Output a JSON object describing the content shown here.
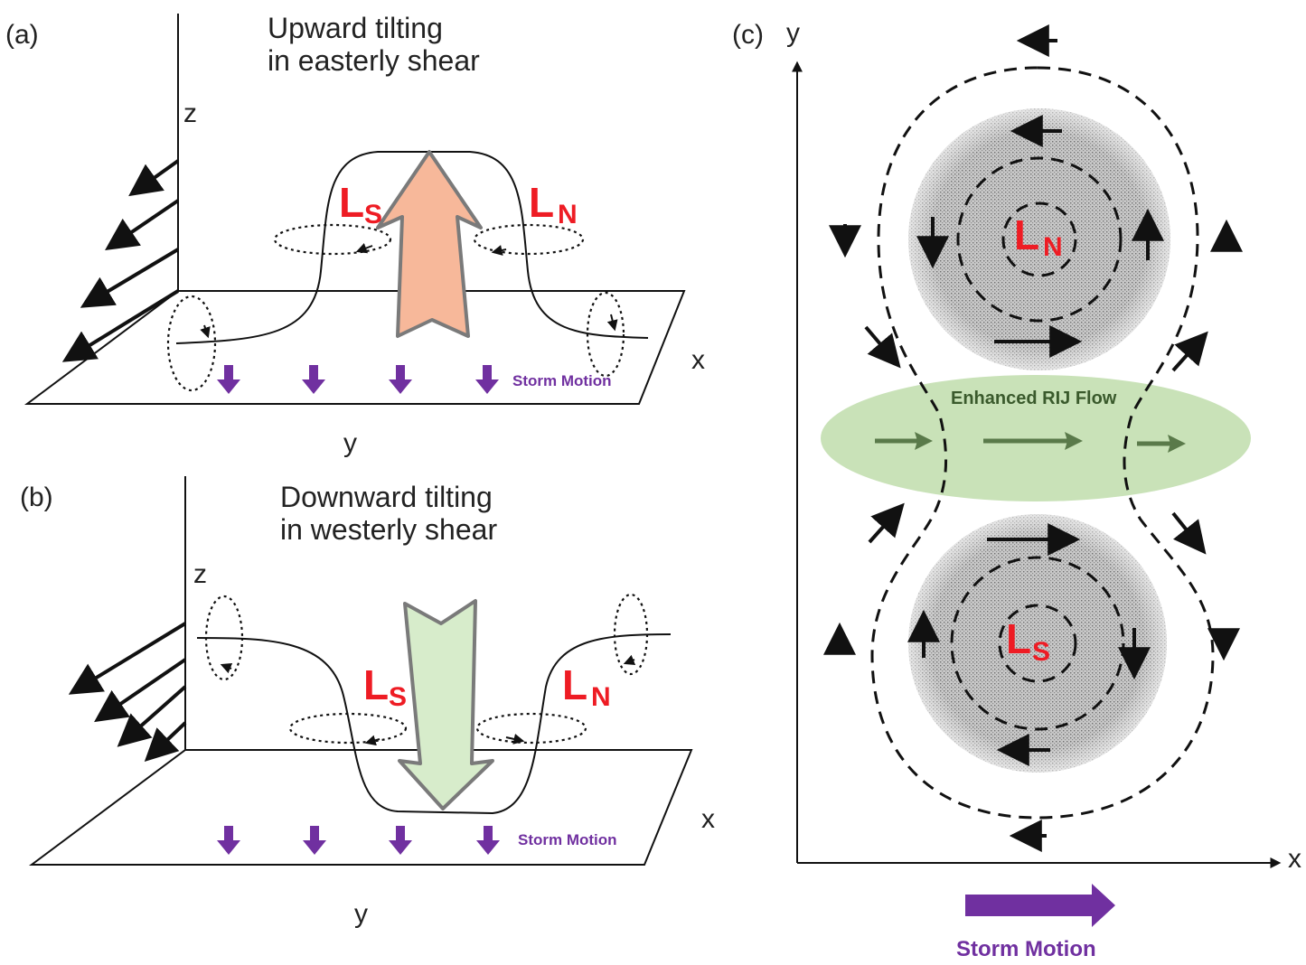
{
  "panel_a": {
    "label": "(a)",
    "title_line1": "Upward tilting",
    "title_line2": "in easterly shear",
    "axis_z": "z",
    "axis_x": "x",
    "axis_y": "y",
    "ls_main": "L",
    "ls_sub": "S",
    "ln_main": "L",
    "ln_sub": "N",
    "storm_motion": "Storm Motion"
  },
  "panel_b": {
    "label": "(b)",
    "title_line1": "Downward tilting",
    "title_line2": "in westerly shear",
    "axis_z": "z",
    "axis_x": "x",
    "axis_y": "y",
    "ls_main": "L",
    "ls_sub": "S",
    "ln_main": "L",
    "ln_sub": "N",
    "storm_motion": "Storm Motion"
  },
  "panel_c": {
    "label": "(c)",
    "axis_y": "y",
    "axis_x": "x",
    "rij_label": "Enhanced RIJ Flow",
    "ln_main": "L",
    "ln_sub": "N",
    "ls_main": "L",
    "ls_sub": "S",
    "storm_motion": "Storm Motion"
  },
  "colors": {
    "label_red": "#ee1c24",
    "storm_purple": "#7030a0",
    "updraft_orange": "#f7b89a",
    "downdraft_green": "#d7eccb",
    "rij_green": "#c6e0b4",
    "stipple_gray": "#bdbdbd"
  }
}
